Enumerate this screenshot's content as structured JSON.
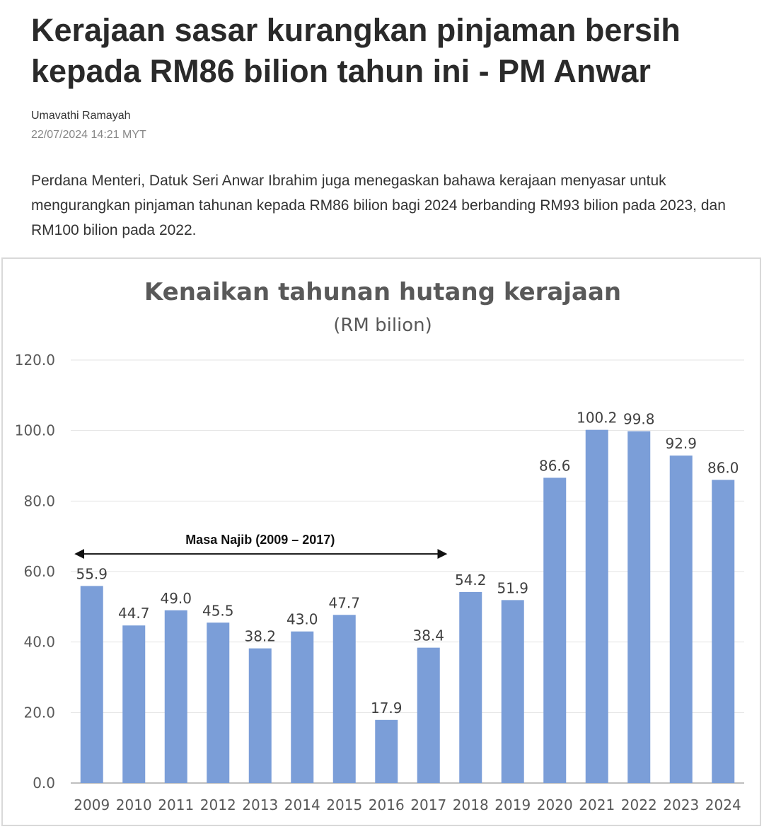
{
  "article": {
    "headline": "Kerajaan sasar kurangkan pinjaman bersih kepada RM86 bilion tahun ini - PM Anwar",
    "author": "Umavathi Ramayah",
    "timestamp": "22/07/2024 14:21 MYT",
    "lead": "Perdana Menteri, Datuk Seri Anwar Ibrahim juga menegaskan bahawa kerajaan menyasar untuk mengurangkan pinjaman tahunan kepada RM86 bilion bagi 2024 berbanding RM93 bilion pada 2023, dan RM100 bilion pada 2022."
  },
  "chart_data": {
    "type": "bar",
    "title": "Kenaikan tahunan hutang kerajaan",
    "subtitle": "(RM bilion)",
    "categories": [
      "2009",
      "2010",
      "2011",
      "2012",
      "2013",
      "2014",
      "2015",
      "2016",
      "2017",
      "2018",
      "2019",
      "2020",
      "2021",
      "2022",
      "2023",
      "2024"
    ],
    "values": [
      55.9,
      44.7,
      49.0,
      45.5,
      38.2,
      43.0,
      47.7,
      17.9,
      38.4,
      54.2,
      51.9,
      86.6,
      100.2,
      99.8,
      92.9,
      86.0
    ],
    "data_labels": [
      "55.9",
      "44.7",
      "49.0",
      "45.5",
      "38.2",
      "43.0",
      "47.7",
      "17.9",
      "38.4",
      "54.2",
      "51.9",
      "86.6",
      "100.2",
      "99.8",
      "92.9",
      "86.0"
    ],
    "ylim": [
      0,
      120
    ],
    "y_ticks": [
      "0.0",
      "20.0",
      "40.0",
      "60.0",
      "80.0",
      "100.0",
      "120.0"
    ],
    "grid": true,
    "bar_color": "#7b9ed8",
    "annotation": {
      "text": "Masa Najib (2009 – 2017)",
      "from": "2009",
      "to": "2017",
      "y": 65
    }
  }
}
